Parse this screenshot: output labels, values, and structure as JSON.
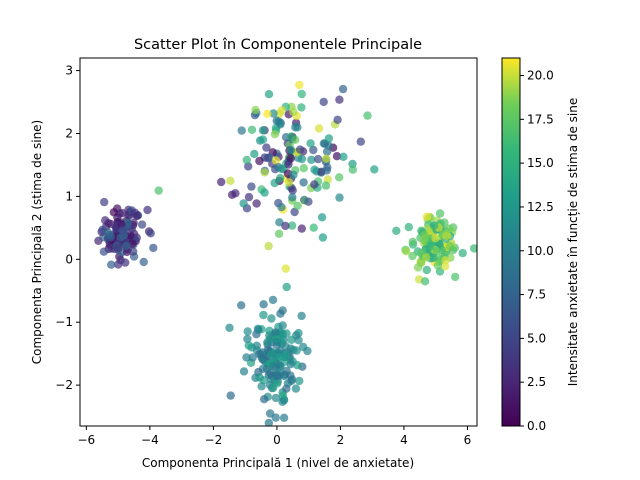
{
  "chart_data": {
    "type": "scatter",
    "title": "Scatter Plot în Componentele Principale",
    "xlabel": "Componenta Principală 1 (nivel de anxietate)",
    "ylabel": "Componenta Principală 2 (stima de sine)",
    "colorbar_label": "Intensitate anxietate în funcție de stima de sine",
    "xlim": [
      -6.2,
      6.3
    ],
    "ylim": [
      -2.65,
      3.2
    ],
    "x_ticks": [
      -6,
      -4,
      -2,
      0,
      2,
      4,
      6
    ],
    "x_tick_labels": [
      "−6",
      "−4",
      "−2",
      "0",
      "2",
      "4",
      "6"
    ],
    "y_ticks": [
      -2,
      -1,
      0,
      1,
      2,
      3
    ],
    "y_tick_labels": [
      "−2",
      "−1",
      "0",
      "1",
      "2",
      "3"
    ],
    "colorbar_range": [
      0,
      21
    ],
    "colorbar_ticks": [
      0,
      2.5,
      5,
      7.5,
      10,
      12.5,
      15,
      17.5,
      20
    ],
    "colorbar_tick_labels": [
      "0.0",
      "2.5",
      "5.0",
      "7.5",
      "10.0",
      "12.5",
      "15.0",
      "17.5",
      "20.0"
    ],
    "colormap": "viridis",
    "marker_alpha": 0.7,
    "grid": false,
    "clusters": [
      {
        "center": [
          -4.9,
          0.4
        ],
        "spread": [
          0.35,
          0.2
        ],
        "count": 120,
        "value_range": [
          0.5,
          8
        ]
      },
      {
        "center": [
          -0.1,
          -1.55
        ],
        "spread": [
          0.4,
          0.4
        ],
        "count": 150,
        "value_range": [
          8,
          14
        ]
      },
      {
        "center": [
          4.9,
          0.25
        ],
        "spread": [
          0.4,
          0.2
        ],
        "count": 130,
        "value_range": [
          14,
          21
        ]
      },
      {
        "center": [
          0.3,
          1.6
        ],
        "spread": [
          1.0,
          0.6
        ],
        "count": 160,
        "value_range": [
          0,
          21
        ]
      }
    ]
  }
}
